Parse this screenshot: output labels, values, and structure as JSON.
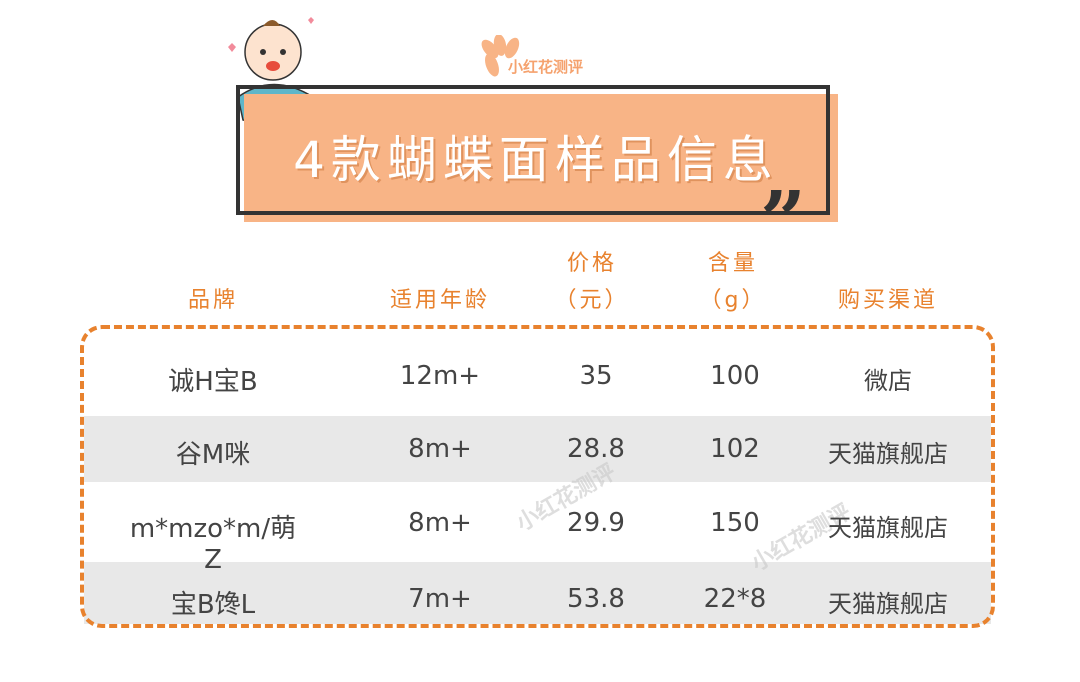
{
  "header": {
    "title": "4款蝴蝶面样品信息",
    "logo_text": "小红花测评"
  },
  "columns": [
    {
      "line1": "",
      "line2": "品牌"
    },
    {
      "line1": "",
      "line2": "适用年龄"
    },
    {
      "line1": "价格",
      "line2": "（元）"
    },
    {
      "line1": "含量",
      "line2": "（g）"
    },
    {
      "line1": "",
      "line2": "购买渠道"
    }
  ],
  "rows": [
    [
      "诚H宝B",
      "12m+",
      "35",
      "100",
      "微店"
    ],
    [
      "谷M咪",
      "8m+",
      "28.8",
      "102",
      "天猫旗舰店"
    ],
    [
      "m*mzo*m/萌Z",
      "8m+",
      "29.9",
      "150",
      "天猫旗舰店"
    ],
    [
      "宝B馋L",
      "7m+",
      "53.8",
      "22*8",
      "天猫旗舰店"
    ]
  ],
  "watermark": "小红花测评",
  "colors": {
    "accent": "#e8822e",
    "banner": "#f8b486",
    "row_alt": "#e8e8e8",
    "text": "#444444"
  }
}
